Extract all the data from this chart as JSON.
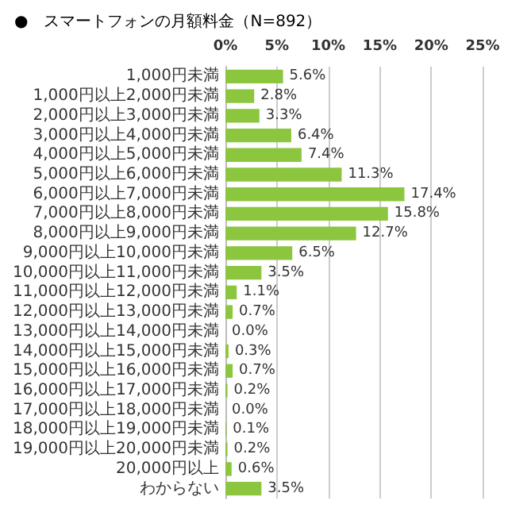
{
  "chart_data": {
    "type": "bar",
    "orientation": "horizontal",
    "title": "●　スマートフォンの月額料金（N=892）",
    "categories": [
      "1,000円未満",
      "1,000円以上2,000円未満",
      "2,000円以上3,000円未満",
      "3,000円以上4,000円未満",
      "4,000円以上5,000円未満",
      "5,000円以上6,000円未満",
      "6,000円以上7,000円未満",
      "7,000円以上8,000円未満",
      "8,000円以上9,000円未満",
      "9,000円以上10,000円未満",
      "10,000円以上11,000円未満",
      "11,000円以上12,000円未満",
      "12,000円以上13,000円未満",
      "13,000円以上14,000円未満",
      "14,000円以上15,000円未満",
      "15,000円以上16,000円未満",
      "16,000円以上17,000円未満",
      "17,000円以上18,000円未満",
      "18,000円以上19,000円未満",
      "19,000円以上20,000円未満",
      "20,000円以上",
      "わからない"
    ],
    "values": [
      5.6,
      2.8,
      3.3,
      6.4,
      7.4,
      11.3,
      17.4,
      15.8,
      12.7,
      6.5,
      3.5,
      1.1,
      0.7,
      0.0,
      0.3,
      0.7,
      0.2,
      0.0,
      0.1,
      0.2,
      0.6,
      3.5
    ],
    "value_labels": [
      "5.6%",
      "2.8%",
      "3.3%",
      "6.4%",
      "7.4%",
      "11.3%",
      "17.4%",
      "15.8%",
      "12.7%",
      "6.5%",
      "3.5%",
      "1.1%",
      "0.7%",
      "0.0%",
      "0.3%",
      "0.7%",
      "0.2%",
      "0.0%",
      "0.1%",
      "0.2%",
      "0.6%",
      "3.5%"
    ],
    "color": "#8cc63f",
    "xlim": [
      0,
      25
    ],
    "xticks": [
      {
        "value": 0,
        "label": "0%"
      },
      {
        "value": 5,
        "label": "5%"
      },
      {
        "value": 10,
        "label": "10%"
      },
      {
        "value": 15,
        "label": "15%"
      },
      {
        "value": 20,
        "label": "20%"
      },
      {
        "value": 25,
        "label": "25%"
      }
    ],
    "grid": "x"
  }
}
